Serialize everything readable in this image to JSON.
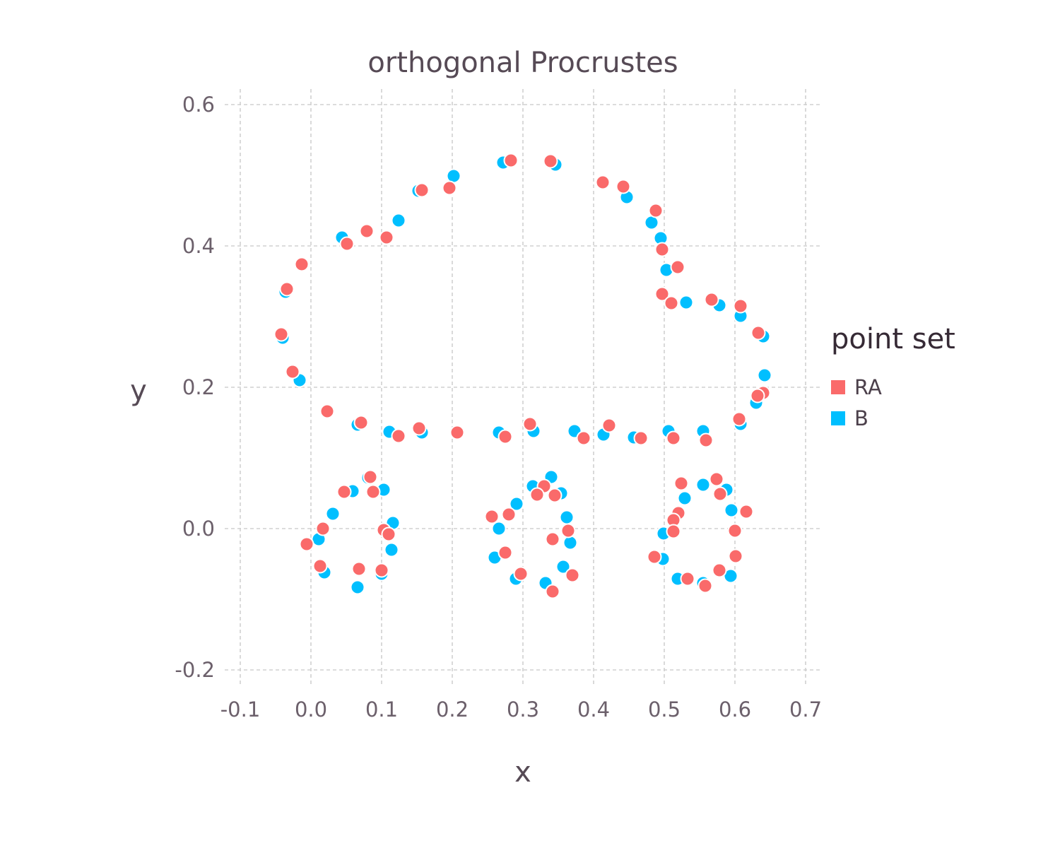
{
  "chart_data": {
    "type": "scatter",
    "title": "orthogonal Procrustes",
    "xlabel": "x",
    "ylabel": "y",
    "xlim": [
      -0.1,
      0.7
    ],
    "ylim": [
      -0.2,
      0.6
    ],
    "xticks": [
      "-0.1",
      "0.0",
      "0.1",
      "0.2",
      "0.3",
      "0.4",
      "0.5",
      "0.6",
      "0.7"
    ],
    "yticks": [
      "-0.2",
      "0.0",
      "0.2",
      "0.4",
      "0.6"
    ],
    "grid": true,
    "legend": {
      "title": "point set",
      "placement": "right"
    },
    "series": [
      {
        "name": "RA",
        "color": "#fa6a6a",
        "points": [
          [
            -0.042,
            0.275
          ],
          [
            -0.034,
            0.339
          ],
          [
            -0.026,
            0.222
          ],
          [
            -0.013,
            0.374
          ],
          [
            0.023,
            0.166
          ],
          [
            0.051,
            0.403
          ],
          [
            0.079,
            0.421
          ],
          [
            0.107,
            0.412
          ],
          [
            0.157,
            0.479
          ],
          [
            0.196,
            0.482
          ],
          [
            0.283,
            0.521
          ],
          [
            0.339,
            0.52
          ],
          [
            0.413,
            0.49
          ],
          [
            0.442,
            0.484
          ],
          [
            0.488,
            0.45
          ],
          [
            0.497,
            0.395
          ],
          [
            0.519,
            0.37
          ],
          [
            0.497,
            0.332
          ],
          [
            0.51,
            0.319
          ],
          [
            0.567,
            0.324
          ],
          [
            0.608,
            0.315
          ],
          [
            0.633,
            0.277
          ],
          [
            0.64,
            0.192
          ],
          [
            0.632,
            0.188
          ],
          [
            0.606,
            0.155
          ],
          [
            0.071,
            0.15
          ],
          [
            0.124,
            0.131
          ],
          [
            0.153,
            0.142
          ],
          [
            0.207,
            0.136
          ],
          [
            0.275,
            0.13
          ],
          [
            0.31,
            0.148
          ],
          [
            0.386,
            0.128
          ],
          [
            0.422,
            0.146
          ],
          [
            0.467,
            0.128
          ],
          [
            0.513,
            0.128
          ],
          [
            0.559,
            0.125
          ],
          [
            0.084,
            0.073
          ],
          [
            0.047,
            0.052
          ],
          [
            0.088,
            0.052
          ],
          [
            0.017,
            0.0
          ],
          [
            0.103,
            -0.002
          ],
          [
            0.11,
            -0.008
          ],
          [
            -0.006,
            -0.022
          ],
          [
            0.013,
            -0.053
          ],
          [
            0.068,
            -0.057
          ],
          [
            0.1,
            -0.059
          ],
          [
            0.256,
            0.017
          ],
          [
            0.28,
            0.02
          ],
          [
            0.33,
            0.06
          ],
          [
            0.32,
            0.048
          ],
          [
            0.345,
            0.047
          ],
          [
            0.364,
            -0.003
          ],
          [
            0.342,
            -0.015
          ],
          [
            0.275,
            -0.034
          ],
          [
            0.297,
            -0.064
          ],
          [
            0.37,
            -0.066
          ],
          [
            0.342,
            -0.089
          ],
          [
            0.524,
            0.064
          ],
          [
            0.574,
            0.07
          ],
          [
            0.579,
            0.049
          ],
          [
            0.616,
            0.024
          ],
          [
            0.52,
            0.022
          ],
          [
            0.513,
            0.012
          ],
          [
            0.513,
            -0.004
          ],
          [
            0.6,
            -0.003
          ],
          [
            0.486,
            -0.04
          ],
          [
            0.601,
            -0.039
          ],
          [
            0.578,
            -0.059
          ],
          [
            0.533,
            -0.071
          ],
          [
            0.558,
            -0.081
          ]
        ]
      },
      {
        "name": "B",
        "color": "#00bfff",
        "points": [
          [
            -0.04,
            0.27
          ],
          [
            -0.036,
            0.335
          ],
          [
            -0.016,
            0.21
          ],
          [
            0.044,
            0.412
          ],
          [
            0.124,
            0.436
          ],
          [
            0.152,
            0.478
          ],
          [
            0.202,
            0.499
          ],
          [
            0.272,
            0.518
          ],
          [
            0.346,
            0.515
          ],
          [
            0.447,
            0.469
          ],
          [
            0.482,
            0.433
          ],
          [
            0.495,
            0.411
          ],
          [
            0.503,
            0.366
          ],
          [
            0.531,
            0.32
          ],
          [
            0.578,
            0.316
          ],
          [
            0.608,
            0.301
          ],
          [
            0.64,
            0.272
          ],
          [
            0.642,
            0.217
          ],
          [
            0.63,
            0.178
          ],
          [
            0.608,
            0.148
          ],
          [
            0.066,
            0.147
          ],
          [
            0.111,
            0.137
          ],
          [
            0.157,
            0.136
          ],
          [
            0.266,
            0.136
          ],
          [
            0.315,
            0.138
          ],
          [
            0.373,
            0.138
          ],
          [
            0.414,
            0.133
          ],
          [
            0.457,
            0.129
          ],
          [
            0.506,
            0.138
          ],
          [
            0.555,
            0.138
          ],
          [
            0.081,
            0.072
          ],
          [
            0.059,
            0.053
          ],
          [
            0.103,
            0.055
          ],
          [
            0.031,
            0.021
          ],
          [
            0.116,
            0.008
          ],
          [
            0.011,
            -0.015
          ],
          [
            0.114,
            -0.03
          ],
          [
            0.019,
            -0.062
          ],
          [
            0.066,
            -0.083
          ],
          [
            0.1,
            -0.064
          ],
          [
            0.314,
            0.06
          ],
          [
            0.34,
            0.073
          ],
          [
            0.354,
            0.05
          ],
          [
            0.291,
            0.035
          ],
          [
            0.362,
            0.016
          ],
          [
            0.266,
            0.0
          ],
          [
            0.367,
            -0.02
          ],
          [
            0.26,
            -0.041
          ],
          [
            0.357,
            -0.054
          ],
          [
            0.29,
            -0.071
          ],
          [
            0.332,
            -0.077
          ],
          [
            0.555,
            0.062
          ],
          [
            0.588,
            0.055
          ],
          [
            0.529,
            0.043
          ],
          [
            0.595,
            0.026
          ],
          [
            0.516,
            0.016
          ],
          [
            0.499,
            -0.007
          ],
          [
            0.498,
            -0.043
          ],
          [
            0.519,
            -0.071
          ],
          [
            0.555,
            -0.077
          ],
          [
            0.594,
            -0.067
          ]
        ]
      }
    ]
  }
}
